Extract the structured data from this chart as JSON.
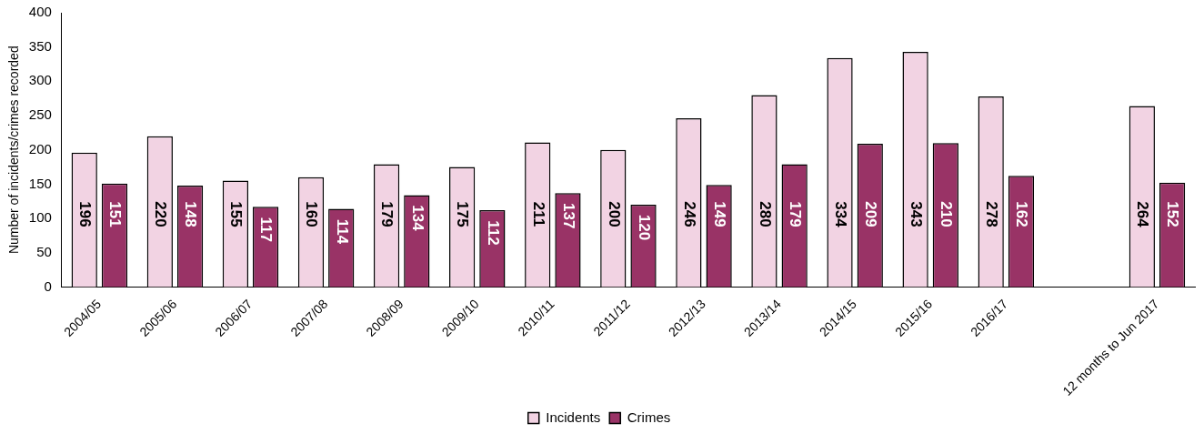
{
  "chart_data": {
    "type": "bar",
    "ylabel": "Number of incidents/crimes recorded",
    "categories": [
      "2004/05",
      "2005/06",
      "2006/07",
      "2007/08",
      "2008/09",
      "2009/10",
      "2010/11",
      "2011/12",
      "2012/13",
      "2013/14",
      "2014/15",
      "2015/16",
      "2016/17",
      null,
      "12 months to Jun 2017"
    ],
    "series": [
      {
        "name": "Incidents",
        "color": "#f2d3e3",
        "values": [
          196,
          220,
          155,
          160,
          179,
          175,
          211,
          200,
          246,
          280,
          334,
          343,
          278,
          null,
          264
        ]
      },
      {
        "name": "Crimes",
        "color": "#993366",
        "values": [
          151,
          148,
          117,
          114,
          134,
          112,
          137,
          120,
          149,
          179,
          209,
          210,
          162,
          null,
          152
        ]
      }
    ],
    "ylim": [
      0,
      400
    ],
    "yticks": [
      0,
      50,
      100,
      150,
      200,
      250,
      300,
      350,
      400
    ],
    "grid": false,
    "legend": "bottom",
    "data_labels": true
  }
}
